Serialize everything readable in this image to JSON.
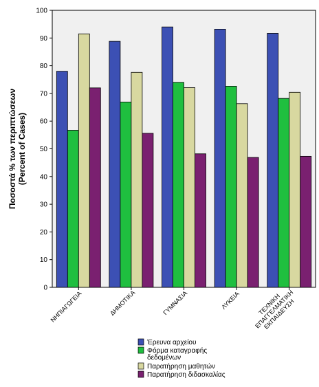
{
  "chart_data": {
    "type": "bar",
    "ylabel_lines": [
      "Ποσοστά % των περιπτώσεων",
      "(Percent of Cases)"
    ],
    "xlabel": "",
    "ylim": [
      0,
      100
    ],
    "yticks": [
      0,
      10,
      20,
      30,
      40,
      50,
      60,
      70,
      80,
      90,
      100
    ],
    "grid": false,
    "legend_position": "bottom",
    "categories": [
      [
        "ΝΗΠΙΑΓΩΓΕΙΑ"
      ],
      [
        "ΔΗΜΟΤΙΚΑ"
      ],
      [
        "ΓΥΜΝΑΣΙΑ"
      ],
      [
        "ΛΥΚΕΙΑ"
      ],
      [
        "ΤΕΧΝΙΚΗ",
        "ΕΠΑΓΓΕΛΜΑΤΙΚΗ",
        "ΕΚΠΑΙΔΕΥΣΗ"
      ]
    ],
    "series": [
      {
        "name_lines": [
          "Έρευνα αρχείου"
        ],
        "color": "#3c50b4",
        "values": [
          78,
          88.8,
          94,
          93.2,
          91.7
        ]
      },
      {
        "name_lines": [
          "Φόρμα καταγραφής",
          "δεδομένων"
        ],
        "color": "#1fbf3f",
        "values": [
          56.7,
          66.9,
          74,
          72.6,
          68.2
        ]
      },
      {
        "name_lines": [
          "Παρατήρηση  μαθητών"
        ],
        "color": "#d8d8a0",
        "values": [
          91.5,
          77.6,
          72.1,
          66.3,
          70.4
        ]
      },
      {
        "name_lines": [
          "Παρατήρηση  διδασκαλίας"
        ],
        "color": "#7a2070",
        "values": [
          72,
          55.6,
          48.2,
          46.9,
          47.3
        ]
      }
    ]
  }
}
